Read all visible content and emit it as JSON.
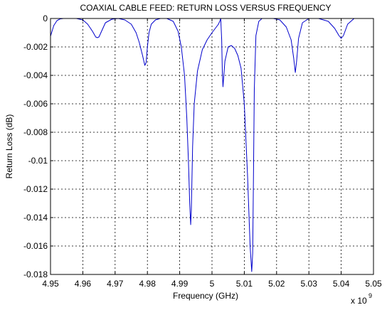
{
  "chart_data": {
    "type": "line",
    "title": "COAXIAL CABLE FEED: RETURN LOSS VERSUS FREQUENCY",
    "xlabel": "Frequency (GHz)",
    "ylabel": "Return Loss (dB)",
    "x_multiplier_label": "x 10",
    "x_multiplier_exponent": "9",
    "xlim": [
      4.95,
      5.05
    ],
    "ylim": [
      -0.018,
      0
    ],
    "grid": true,
    "x_ticks": [
      4.95,
      4.96,
      4.97,
      4.98,
      4.99,
      5.0,
      5.01,
      5.02,
      5.03,
      5.04,
      5.05
    ],
    "x_tick_labels": [
      "4.95",
      "4.96",
      "4.97",
      "4.98",
      "4.99",
      "5",
      "5.01",
      "5.02",
      "5.03",
      "5.04",
      "5.05"
    ],
    "y_ticks": [
      0,
      -0.002,
      -0.004,
      -0.006,
      -0.008,
      -0.01,
      -0.012,
      -0.014,
      -0.016,
      -0.018
    ],
    "y_tick_labels": [
      "0",
      "-0.002",
      "-0.004",
      "-0.006",
      "-0.008",
      "-0.01",
      "-0.012",
      "-0.014",
      "-0.016",
      "-0.018"
    ],
    "series": [
      {
        "color": "#0000cc",
        "x": [
          4.95,
          4.951,
          4.952,
          4.953,
          4.954,
          4.955,
          4.958,
          4.96,
          4.9615,
          4.963,
          4.964,
          4.9645,
          4.965,
          4.966,
          4.967,
          4.969,
          4.971,
          4.973,
          4.975,
          4.9765,
          4.9775,
          4.9785,
          4.9792,
          4.9796,
          4.98,
          4.9805,
          4.9812,
          4.9825,
          4.984,
          4.986,
          4.988,
          4.9895,
          4.9905,
          4.9915,
          4.9922,
          4.9927,
          4.9931,
          4.9934,
          4.9936,
          4.994,
          4.9945,
          4.9955,
          4.997,
          4.9985,
          5.0,
          5.001,
          5.002,
          5.0024,
          5.0027,
          5.003,
          5.0032,
          5.0034,
          5.004,
          5.005,
          5.006,
          5.007,
          5.008,
          5.009,
          5.01,
          5.011,
          5.0118,
          5.0123,
          5.0126,
          5.0128,
          5.0131,
          5.0136,
          5.0145,
          5.0155,
          5.017,
          5.019,
          5.021,
          5.023,
          5.0245,
          5.0253,
          5.0258,
          5.0262,
          5.0268,
          5.028,
          5.03,
          5.033,
          5.036,
          5.038,
          5.0393,
          5.04,
          5.0407,
          5.042,
          5.044,
          5.047,
          5.05
        ],
        "y": [
          -0.00125,
          -0.0005,
          -0.00015,
          -3e-05,
          0,
          0,
          0,
          -0.0001,
          -0.0004,
          -0.0009,
          -0.0013,
          -0.00135,
          -0.0013,
          -0.0008,
          -0.0003,
          -5e-05,
          0,
          -0.0001,
          -0.0004,
          -0.001,
          -0.0017,
          -0.0026,
          -0.0033,
          -0.0031,
          -0.002,
          -0.001,
          -0.0004,
          -0.0001,
          0,
          0,
          -0.0002,
          -0.0009,
          -0.002,
          -0.004,
          -0.007,
          -0.01,
          -0.013,
          -0.0145,
          -0.0135,
          -0.009,
          -0.006,
          -0.0037,
          -0.0022,
          -0.0015,
          -0.001,
          -0.0007,
          -0.0004,
          -0.0002,
          0,
          -0.0015,
          -0.0038,
          -0.0048,
          -0.003,
          -0.002,
          -0.0019,
          -0.0021,
          -0.0026,
          -0.0035,
          -0.006,
          -0.011,
          -0.016,
          -0.0178,
          -0.0165,
          -0.012,
          -0.005,
          -0.0012,
          -0.0002,
          0,
          0,
          0,
          -0.0001,
          -0.0006,
          -0.0015,
          -0.0028,
          -0.0038,
          -0.003,
          -0.0014,
          -0.0003,
          0,
          0,
          -0.0002,
          -0.0007,
          -0.0012,
          -0.0014,
          -0.0012,
          -0.0004,
          0,
          0,
          0
        ]
      }
    ]
  }
}
